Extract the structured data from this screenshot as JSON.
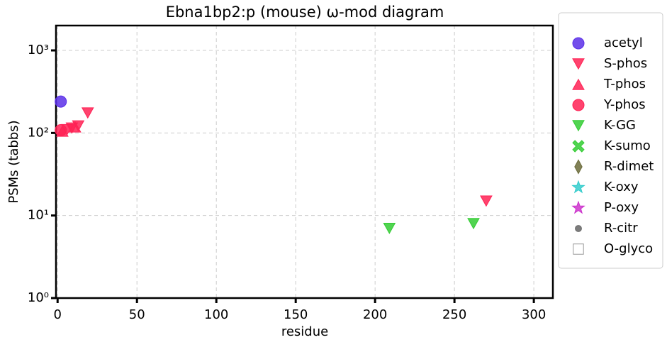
{
  "chart_data": {
    "type": "scatter",
    "title": "Ebna1bp2:p (mouse) ω-mod diagram",
    "x_label": "residue",
    "y_label": "PSMs (tabbs)",
    "xlim": [
      -1,
      312
    ],
    "xticks": [
      0,
      50,
      100,
      150,
      200,
      250,
      300
    ],
    "ylim": [
      1,
      2000
    ],
    "log_y": true,
    "yticks": [
      {
        "value": 1,
        "label": "10⁰"
      },
      {
        "value": 10,
        "label": "10¹"
      },
      {
        "value": 100,
        "label": "10²"
      },
      {
        "value": 1000,
        "label": "10³"
      }
    ],
    "grid": true,
    "legend": "outside right",
    "series": [
      {
        "name": "acetyl",
        "color": "#5b2fe8",
        "marker": "o",
        "x": [
          2
        ],
        "values": [
          240
        ]
      },
      {
        "name": "S-phos",
        "color": "#ff2255",
        "marker": "v",
        "x": [
          6,
          9,
          13,
          19,
          270
        ],
        "values": [
          110,
          115,
          122,
          175,
          15
        ]
      },
      {
        "name": "T-phos",
        "color": "#ff2255",
        "marker": "^",
        "x": [
          3,
          11
        ],
        "values": [
          105,
          118
        ]
      },
      {
        "name": "Y-phos",
        "color": "#ff2255",
        "marker": "o",
        "x": [
          2
        ],
        "values": [
          108
        ]
      },
      {
        "name": "K-GG",
        "color": "#33cc33",
        "marker": "v",
        "x": [
          209,
          262
        ],
        "values": [
          7,
          8
        ]
      },
      {
        "name": "K-sumo",
        "color": "#33cc33",
        "marker": "X",
        "x": [],
        "values": []
      },
      {
        "name": "R-dimet",
        "color": "#6b6b3a",
        "marker": "d",
        "x": [],
        "values": []
      },
      {
        "name": "K-oxy",
        "color": "#33cccc",
        "marker": "*",
        "x": [],
        "values": []
      },
      {
        "name": "P-oxy",
        "color": "#cc33cc",
        "marker": "*",
        "x": [],
        "values": []
      },
      {
        "name": "R-citr",
        "color": "#666666",
        "marker": ".",
        "x": [],
        "values": []
      },
      {
        "name": "O-glyco",
        "color": "#ffffff",
        "marker": "s",
        "x": [],
        "values": []
      }
    ]
  }
}
